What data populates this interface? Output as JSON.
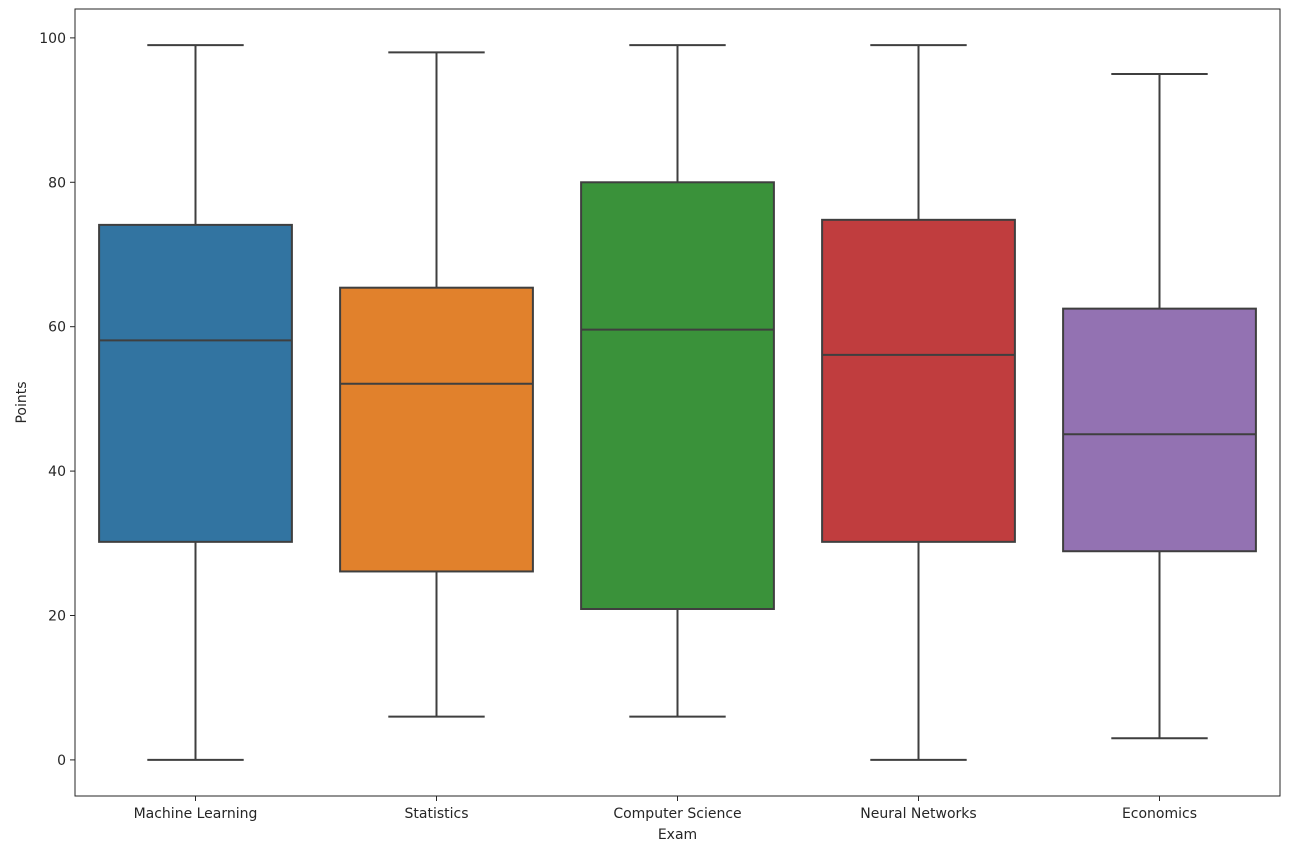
{
  "chart_data": {
    "type": "box",
    "xlabel": "Exam",
    "ylabel": "Points",
    "ylim": [
      -5,
      104
    ],
    "yticks": [
      0,
      20,
      40,
      60,
      80,
      100
    ],
    "grid": false,
    "categories": [
      "Machine Learning",
      "Statistics",
      "Computer Science",
      "Neural Networks",
      "Economics"
    ],
    "boxes": [
      {
        "name": "Machine Learning",
        "min": 0,
        "q1": 30.2,
        "median": 58.1,
        "q3": 74.1,
        "max": 99,
        "color": "#3274a1"
      },
      {
        "name": "Statistics",
        "min": 6,
        "q1": 26.1,
        "median": 52.1,
        "q3": 65.4,
        "max": 98,
        "color": "#e1812c"
      },
      {
        "name": "Computer Science",
        "min": 6,
        "q1": 20.9,
        "median": 59.6,
        "q3": 80,
        "max": 99,
        "color": "#3a923a"
      },
      {
        "name": "Neural Networks",
        "min": 0,
        "q1": 30.2,
        "median": 56.1,
        "q3": 74.8,
        "max": 99,
        "color": "#c03d3e"
      },
      {
        "name": "Economics",
        "min": 3,
        "q1": 28.9,
        "median": 45.1,
        "q3": 62.5,
        "max": 95,
        "color": "#9372b2"
      }
    ]
  }
}
